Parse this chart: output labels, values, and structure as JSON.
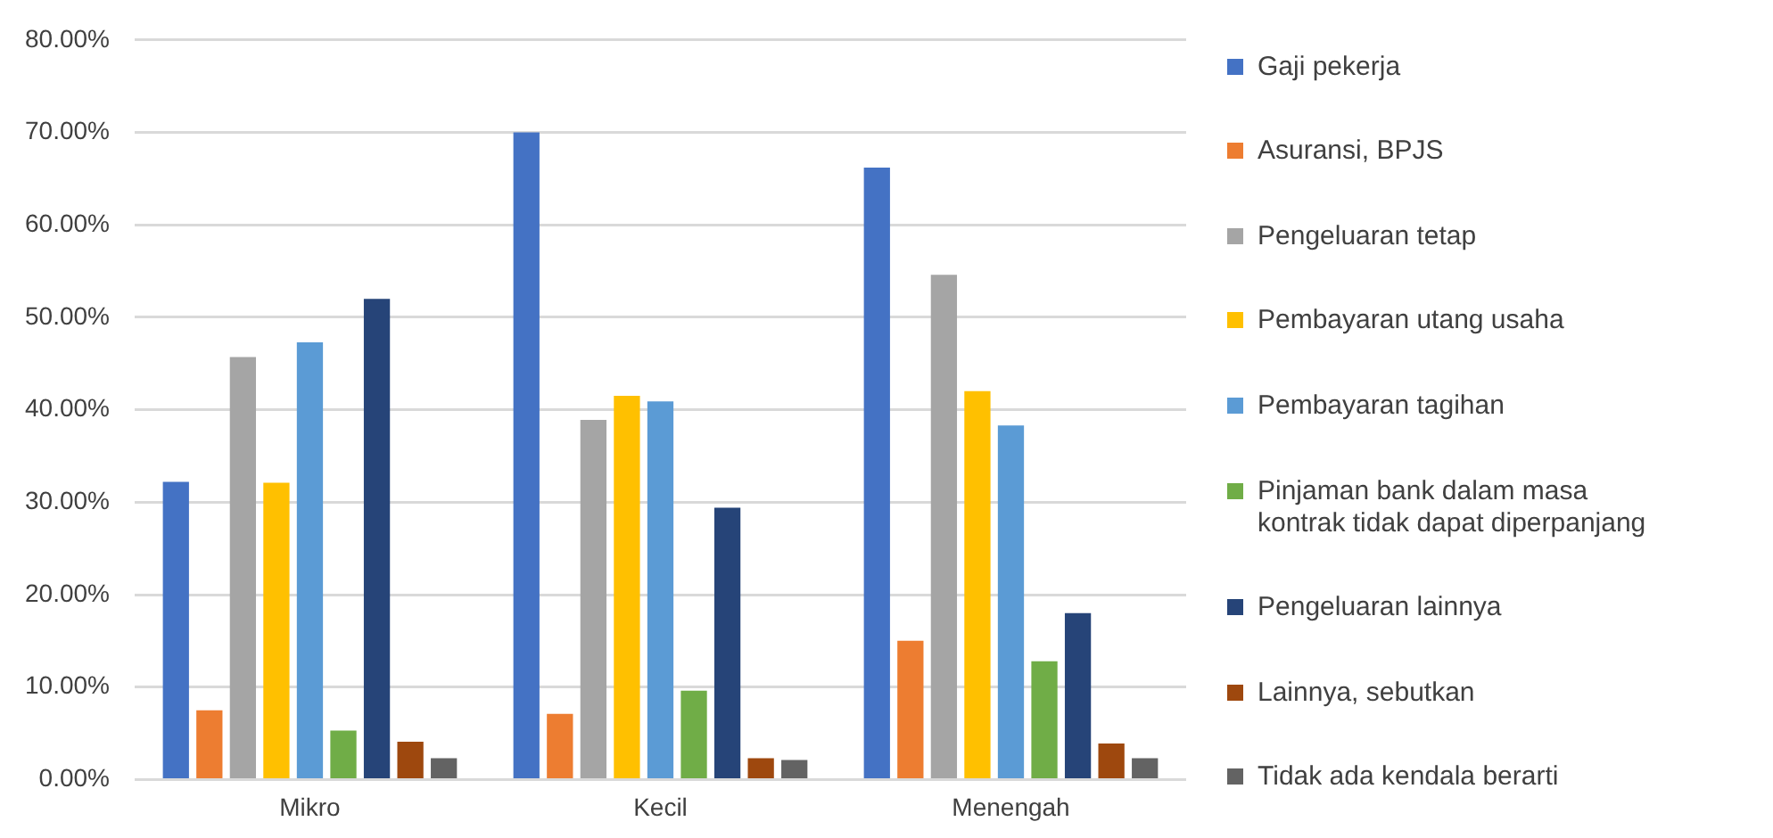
{
  "chart_data": {
    "type": "bar",
    "categories": [
      "Mikro",
      "Kecil",
      "Menengah"
    ],
    "series": [
      {
        "name": "Gaji pekerja",
        "color": "#4472c4",
        "values": [
          32.2,
          70.0,
          66.2
        ]
      },
      {
        "name": "Asuransi, BPJS",
        "color": "#ed7d31",
        "values": [
          7.5,
          7.1,
          15.0
        ]
      },
      {
        "name": "Pengeluaran tetap",
        "color": "#a5a5a5",
        "values": [
          45.7,
          38.9,
          54.6
        ]
      },
      {
        "name": "Pembayaran utang usaha",
        "color": "#ffc000",
        "values": [
          32.1,
          41.5,
          42.0
        ]
      },
      {
        "name": "Pembayaran tagihan",
        "color": "#5b9bd5",
        "values": [
          47.3,
          40.9,
          38.3
        ]
      },
      {
        "name": "Pinjaman bank dalam masa kontrak tidak dapat diperpanjang",
        "color": "#70ad47",
        "values": [
          5.3,
          9.6,
          12.8
        ]
      },
      {
        "name": "Pengeluaran lainnya",
        "color": "#264478",
        "values": [
          52.0,
          29.4,
          18.0
        ]
      },
      {
        "name": "Lainnya, sebutkan",
        "color": "#9e480e",
        "values": [
          4.1,
          2.3,
          3.9
        ]
      },
      {
        "name": "Tidak ada kendala berarti",
        "color": "#636363",
        "values": [
          2.3,
          2.1,
          2.3
        ]
      }
    ],
    "ylim": [
      0,
      80
    ],
    "yticks": [
      {
        "value": 0,
        "label": "0.00%"
      },
      {
        "value": 10,
        "label": "10.00%"
      },
      {
        "value": 20,
        "label": "20.00%"
      },
      {
        "value": 30,
        "label": "30.00%"
      },
      {
        "value": 40,
        "label": "40.00%"
      },
      {
        "value": 50,
        "label": "50.00%"
      },
      {
        "value": 60,
        "label": "60.00%"
      },
      {
        "value": 70,
        "label": "70.00%"
      },
      {
        "value": 80,
        "label": "80.00%"
      }
    ],
    "grid": "y",
    "legend": "right"
  }
}
